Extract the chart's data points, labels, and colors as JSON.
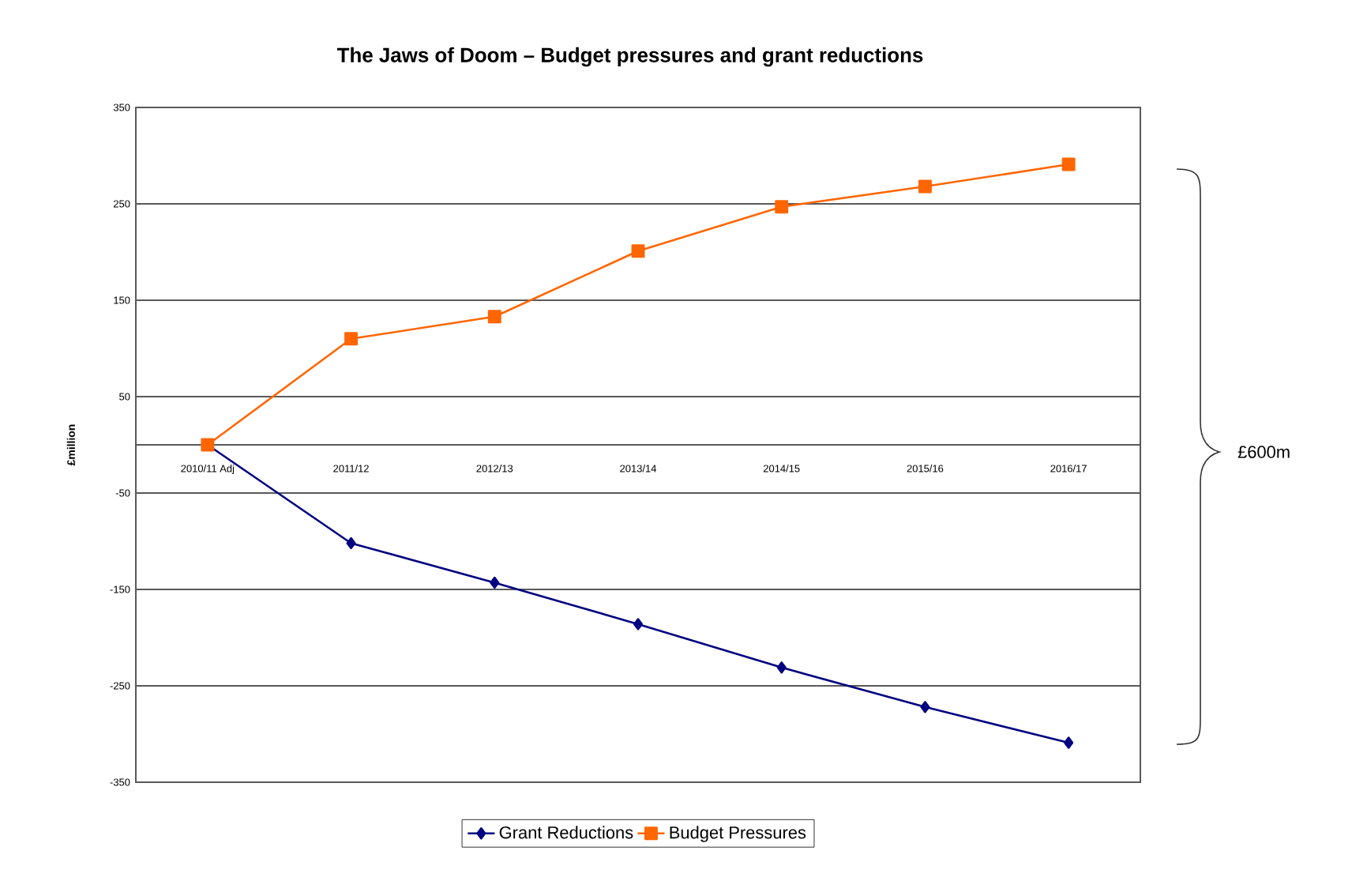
{
  "chart_data": {
    "type": "line",
    "title": "The Jaws of Doom – Budget pressures and grant reductions",
    "ylabel": "£million",
    "categories": [
      "2010/11 Adj",
      "2011/12",
      "2012/13",
      "2013/14",
      "2014/15",
      "2015/16",
      "2016/17"
    ],
    "series": [
      {
        "name": "Grant Reductions",
        "color": "#000080",
        "marker": "diamond",
        "values": [
          0,
          -102,
          -143,
          -186,
          -231,
          -272,
          -309
        ]
      },
      {
        "name": "Budget Pressures",
        "color": "#ff6600",
        "marker": "square",
        "values": [
          0,
          110,
          133,
          201,
          247,
          268,
          291
        ]
      }
    ],
    "ylim": [
      -350,
      350
    ],
    "yticks": [
      -350,
      -250,
      -150,
      -50,
      50,
      250,
      150,
      350
    ],
    "grid": "y",
    "legend": "bottom",
    "annotations": [
      "£600m"
    ]
  }
}
